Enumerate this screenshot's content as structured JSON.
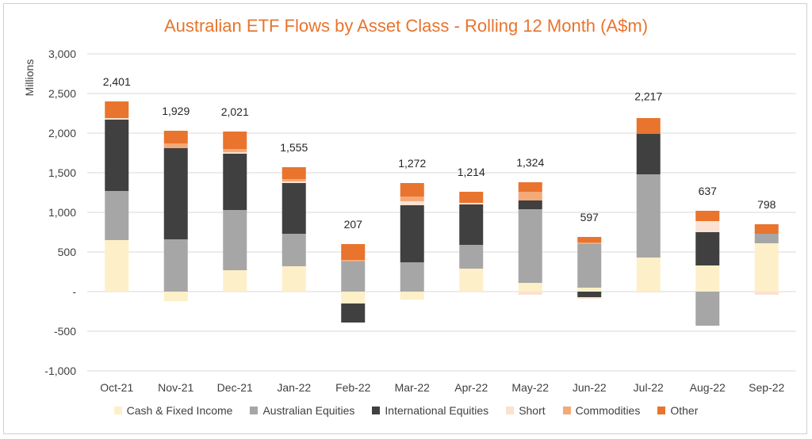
{
  "chart_data": {
    "type": "bar",
    "stacked": true,
    "title": "Australian ETF Flows by Asset Class - Rolling 12 Month (A$m)",
    "ylabel": "Millions",
    "ylim": [
      -1000,
      3000
    ],
    "yticks": [
      {
        "value": 3000,
        "label": "3,000"
      },
      {
        "value": 2500,
        "label": "2,500"
      },
      {
        "value": 2000,
        "label": "2,000"
      },
      {
        "value": 1500,
        "label": "1,500"
      },
      {
        "value": 1000,
        "label": "1,000"
      },
      {
        "value": 500,
        "label": "500"
      },
      {
        "value": 0,
        "label": "-"
      },
      {
        "value": -500,
        "label": "-500"
      },
      {
        "value": -1000,
        "label": "-1,000"
      }
    ],
    "grid": true,
    "legend_position": "bottom",
    "categories": [
      "Oct-21",
      "Nov-21",
      "Dec-21",
      "Jan-22",
      "Feb-22",
      "Mar-22",
      "Apr-22",
      "May-22",
      "Jun-22",
      "Jul-22",
      "Aug-22",
      "Sep-22"
    ],
    "series": [
      {
        "name": "Cash & Fixed Income",
        "color": "#fdefc8",
        "values": [
          650,
          -120,
          270,
          320,
          -150,
          -100,
          290,
          110,
          50,
          430,
          330,
          610
        ]
      },
      {
        "name": "Australian Equities",
        "color": "#a6a6a6",
        "values": [
          620,
          660,
          760,
          410,
          380,
          370,
          300,
          930,
          550,
          1050,
          -430,
          120
        ]
      },
      {
        "name": "International Equities",
        "color": "#404040",
        "values": [
          900,
          1150,
          710,
          640,
          -240,
          720,
          510,
          110,
          -70,
          510,
          420,
          0
        ]
      },
      {
        "name": "Short",
        "color": "#fbe1d1",
        "values": [
          20,
          0,
          20,
          20,
          0,
          50,
          20,
          -40,
          -20,
          -10,
          140,
          -40
        ]
      },
      {
        "name": "Commodities",
        "color": "#f4a978",
        "values": [
          0,
          60,
          40,
          30,
          20,
          60,
          0,
          110,
          20,
          0,
          0,
          0
        ]
      },
      {
        "name": "Other",
        "color": "#e8742e",
        "values": [
          210,
          160,
          220,
          150,
          200,
          170,
          140,
          120,
          70,
          200,
          130,
          120
        ]
      }
    ],
    "totals": [
      {
        "value": 2401,
        "label": "2,401"
      },
      {
        "value": 1929,
        "label": "1,929"
      },
      {
        "value": 2021,
        "label": "2,021"
      },
      {
        "value": 1555,
        "label": "1,555"
      },
      {
        "value": 207,
        "label": "207"
      },
      {
        "value": 1272,
        "label": "1,272"
      },
      {
        "value": 1214,
        "label": "1,214"
      },
      {
        "value": 1324,
        "label": "1,324"
      },
      {
        "value": 597,
        "label": "597"
      },
      {
        "value": 2217,
        "label": "2,217"
      },
      {
        "value": 637,
        "label": "637"
      },
      {
        "value": 798,
        "label": "798"
      }
    ]
  }
}
